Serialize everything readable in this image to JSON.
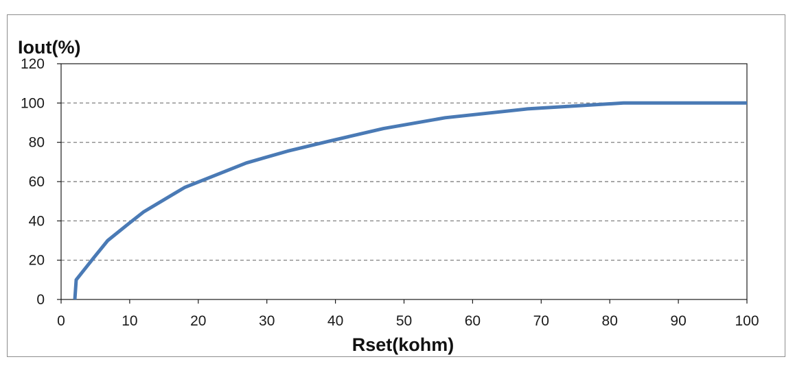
{
  "chart_data": {
    "type": "line",
    "title": "",
    "xlabel": "Rset(kohm)",
    "ylabel": "Iout(%)",
    "xlim": [
      0,
      100
    ],
    "ylim": [
      0,
      120
    ],
    "x_ticks": [
      0,
      10,
      20,
      30,
      40,
      50,
      60,
      70,
      80,
      90,
      100
    ],
    "y_ticks": [
      0,
      20,
      40,
      60,
      80,
      100,
      120
    ],
    "x_tick_labels": [
      "0",
      "10",
      "20",
      "30",
      "40",
      "50",
      "60",
      "70",
      "80",
      "90",
      "100"
    ],
    "y_tick_labels": [
      "0",
      "20",
      "40",
      "60",
      "80",
      "100",
      "120"
    ],
    "grid": "horizontal dashed",
    "legend": "none",
    "series": [
      {
        "color": "#4a7ab5",
        "x": [
          2,
          2.2,
          4.7,
          6.8,
          10,
          12,
          18,
          27,
          33,
          39,
          47,
          56,
          68,
          82,
          100
        ],
        "y": [
          0,
          10,
          21,
          30,
          39,
          44.5,
          57,
          69.5,
          75.5,
          80.5,
          87,
          92.5,
          97,
          100,
          100
        ]
      }
    ]
  }
}
